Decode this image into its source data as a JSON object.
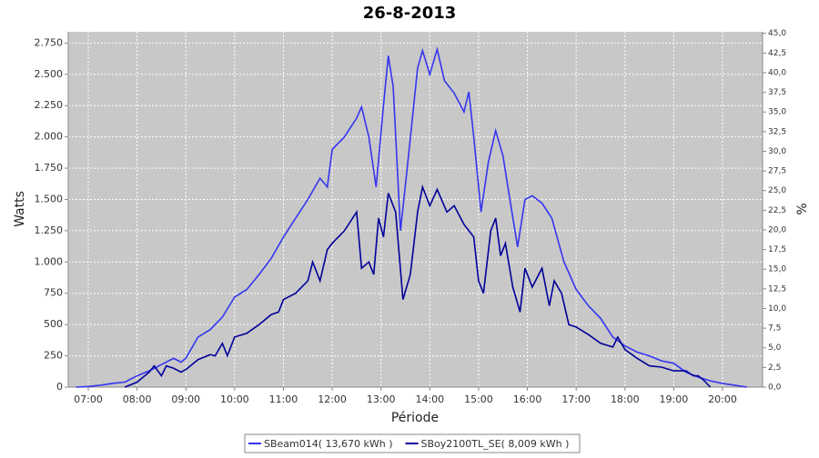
{
  "chart_data": {
    "type": "line",
    "title": "26-8-2013",
    "xlabel": "Période",
    "ylabel": "Watts",
    "y2label": "%",
    "grid": true,
    "legend": "bottom",
    "xlim": [
      6.59,
      20.82
    ],
    "xticks": [
      {
        "value": 7,
        "label": "07:00"
      },
      {
        "value": 8,
        "label": "08:00"
      },
      {
        "value": 9,
        "label": "09:00"
      },
      {
        "value": 10,
        "label": "10:00"
      },
      {
        "value": 11,
        "label": "11:00"
      },
      {
        "value": 12,
        "label": "12:00"
      },
      {
        "value": 13,
        "label": "13:00"
      },
      {
        "value": 14,
        "label": "14:00"
      },
      {
        "value": 15,
        "label": "15:00"
      },
      {
        "value": 16,
        "label": "16:00"
      },
      {
        "value": 17,
        "label": "17:00"
      },
      {
        "value": 18,
        "label": "18:00"
      },
      {
        "value": 19,
        "label": "19:00"
      },
      {
        "value": 20,
        "label": "20:00"
      }
    ],
    "ylim": [
      0,
      2840
    ],
    "yticks": [
      0,
      250,
      500,
      750,
      {
        "value": 1000,
        "label": "1.000"
      },
      {
        "value": 1250,
        "label": "1.250"
      },
      {
        "value": 1500,
        "label": "1.500"
      },
      {
        "value": 1750,
        "label": "1.750"
      },
      {
        "value": 2000,
        "label": "2.000"
      },
      {
        "value": 2250,
        "label": "2.250"
      },
      {
        "value": 2500,
        "label": "2.500"
      },
      {
        "value": 2750,
        "label": "2.750"
      }
    ],
    "y2lim": [
      0,
      45.2
    ],
    "y2ticks": [
      {
        "value": 0,
        "label": "0,0"
      },
      {
        "value": 2.5,
        "label": "2,5"
      },
      {
        "value": 5,
        "label": "5,0"
      },
      {
        "value": 7.5,
        "label": "7,5"
      },
      {
        "value": 10,
        "label": "10,0"
      },
      {
        "value": 12.5,
        "label": "12,5"
      },
      {
        "value": 15,
        "label": "15,0"
      },
      {
        "value": 17.5,
        "label": "17,5"
      },
      {
        "value": 20,
        "label": "20,0"
      },
      {
        "value": 22.5,
        "label": "22,5"
      },
      {
        "value": 25,
        "label": "25,0"
      },
      {
        "value": 27.5,
        "label": "27,5"
      },
      {
        "value": 30,
        "label": "30,0"
      },
      {
        "value": 32.5,
        "label": "32,5"
      },
      {
        "value": 35,
        "label": "35,0"
      },
      {
        "value": 37.5,
        "label": "37,5"
      },
      {
        "value": 40,
        "label": "40,0"
      },
      {
        "value": 42.5,
        "label": "42,5"
      },
      {
        "value": 45,
        "label": "45,0"
      }
    ],
    "series": [
      {
        "name": "SBeam014( 13,670 kWh )",
        "color": "#3535f0",
        "x": [
          6.75,
          7.0,
          7.25,
          7.5,
          7.75,
          8.0,
          8.25,
          8.5,
          8.75,
          8.9,
          9.0,
          9.25,
          9.5,
          9.75,
          10.0,
          10.25,
          10.5,
          10.75,
          11.0,
          11.25,
          11.5,
          11.75,
          11.9,
          12.0,
          12.25,
          12.5,
          12.6,
          12.75,
          12.9,
          13.05,
          13.15,
          13.25,
          13.4,
          13.55,
          13.75,
          13.85,
          14.0,
          14.15,
          14.3,
          14.5,
          14.7,
          14.8,
          14.9,
          15.05,
          15.2,
          15.35,
          15.5,
          15.6,
          15.8,
          15.95,
          16.1,
          16.3,
          16.5,
          16.75,
          17.0,
          17.25,
          17.5,
          17.75,
          18.0,
          18.25,
          18.5,
          18.75,
          19.0,
          19.25,
          19.5,
          19.75,
          20.0,
          20.25,
          20.5
        ],
        "values": [
          0,
          5,
          15,
          30,
          40,
          90,
          130,
          180,
          230,
          200,
          230,
          400,
          460,
          560,
          720,
          780,
          900,
          1030,
          1200,
          1350,
          1500,
          1670,
          1600,
          1900,
          2000,
          2150,
          2240,
          2000,
          1600,
          2250,
          2650,
          2400,
          1250,
          1800,
          2550,
          2690,
          2500,
          2700,
          2450,
          2350,
          2200,
          2360,
          2000,
          1400,
          1800,
          2050,
          1850,
          1600,
          1120,
          1500,
          1530,
          1470,
          1350,
          1000,
          780,
          650,
          550,
          400,
          330,
          280,
          250,
          210,
          190,
          120,
          80,
          50,
          30,
          15,
          0
        ]
      },
      {
        "name": "SBoy2100TL_SE( 8,009 kWh )",
        "color": "#000099",
        "x": [
          7.75,
          8.0,
          8.25,
          8.35,
          8.5,
          8.6,
          8.75,
          8.9,
          9.0,
          9.25,
          9.5,
          9.6,
          9.75,
          9.85,
          10.0,
          10.25,
          10.5,
          10.75,
          10.9,
          11.0,
          11.25,
          11.5,
          11.6,
          11.75,
          11.9,
          12.0,
          12.25,
          12.5,
          12.6,
          12.75,
          12.85,
          12.95,
          13.05,
          13.15,
          13.3,
          13.45,
          13.6,
          13.75,
          13.85,
          14.0,
          14.15,
          14.35,
          14.5,
          14.7,
          14.9,
          15.0,
          15.1,
          15.25,
          15.35,
          15.45,
          15.55,
          15.7,
          15.85,
          15.95,
          16.1,
          16.3,
          16.45,
          16.55,
          16.7,
          16.85,
          17.0,
          17.25,
          17.5,
          17.75,
          17.85,
          18.0,
          18.25,
          18.5,
          18.75,
          19.0,
          19.25,
          19.4,
          19.5,
          19.6,
          19.75
        ],
        "values": [
          0,
          40,
          120,
          170,
          90,
          170,
          150,
          120,
          140,
          220,
          260,
          250,
          350,
          250,
          400,
          430,
          500,
          580,
          600,
          700,
          750,
          850,
          1000,
          850,
          1100,
          1150,
          1250,
          1400,
          950,
          1000,
          900,
          1350,
          1200,
          1550,
          1400,
          700,
          900,
          1400,
          1600,
          1450,
          1580,
          1400,
          1450,
          1300,
          1200,
          850,
          750,
          1250,
          1350,
          1050,
          1150,
          800,
          600,
          950,
          800,
          950,
          650,
          850,
          750,
          500,
          480,
          420,
          350,
          320,
          400,
          300,
          230,
          170,
          160,
          130,
          130,
          90,
          90,
          60,
          0
        ]
      }
    ]
  }
}
